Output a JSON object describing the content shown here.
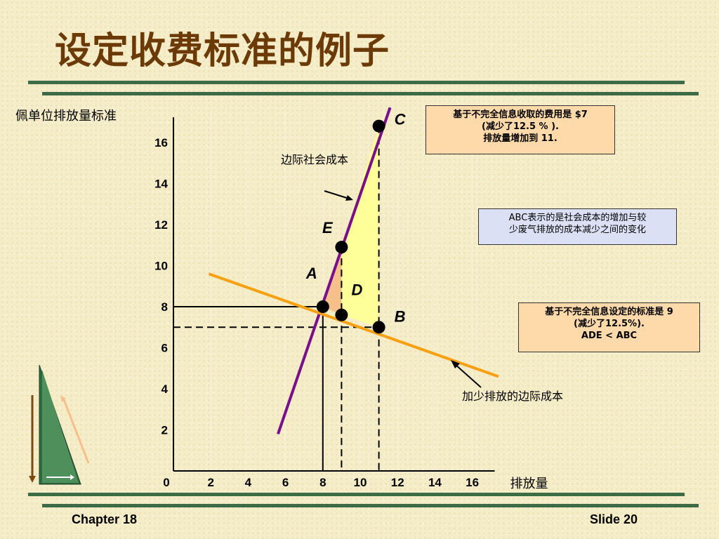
{
  "title": "设定收费标准的例子",
  "footer": {
    "left": "Chapter 18",
    "right": "Slide 20"
  },
  "colors": {
    "mcs": "#7a0f8c",
    "mca": "#f7a010",
    "triangle_yellow": "#ffff99",
    "triangle_orange": "#f6c08a",
    "title": "#6b3a06",
    "rule": "#3d6b45"
  },
  "chart_data": {
    "type": "line",
    "ylabel": "佩单位排放量标准",
    "xlabel": "排放量",
    "xlim": [
      0,
      17.5
    ],
    "ylim": [
      0,
      17.5
    ],
    "x_ticks": [
      "0",
      "2",
      "4",
      "6",
      "8",
      "10",
      "12",
      "14",
      "16"
    ],
    "y_ticks": [
      "2",
      "4",
      "6",
      "8",
      "10",
      "12",
      "14",
      "16"
    ],
    "series": [
      {
        "name": "边际社会成本",
        "color": "#7a0f8c",
        "x": [
          5.6,
          11.6
        ],
        "y": [
          1.8,
          17.7
        ]
      },
      {
        "name": "加少排放的边际成本",
        "color": "#f7a010",
        "x": [
          1.9,
          17.4
        ],
        "y": [
          9.6,
          4.6
        ]
      }
    ],
    "points": [
      {
        "label": "A",
        "x": 8.0,
        "y": 8.0
      },
      {
        "label": "D",
        "x": 9.0,
        "y": 7.6
      },
      {
        "label": "B",
        "x": 11.0,
        "y": 7.0
      },
      {
        "label": "E",
        "x": 9.0,
        "y": 10.9
      },
      {
        "label": "C",
        "x": 11.0,
        "y": 16.8
      }
    ],
    "annotations": [
      "基于不完全信息收取的费用是 $7",
      "(减少了12.5 % ).",
      "排放量增加到 11.",
      "ABC表示的是社会成本的增加与较少废气排放的成本减少之间的变化",
      "基于不完全信息设定的标准是 9",
      "(减少了12.5%).",
      "ADE < ABC"
    ]
  },
  "boxes": {
    "fee": [
      "基于不完全信息收取的费用是 $7",
      "(减少了12.5 % ).",
      "排放量增加到 11."
    ],
    "abc": [
      "ABC表示的是社会成本的增加与较",
      "少废气排放的成本减少之间的变化"
    ],
    "std": [
      "基于不完全信息设定的标准是 9",
      "(减少了12.5%).",
      "ADE < ABC"
    ]
  }
}
